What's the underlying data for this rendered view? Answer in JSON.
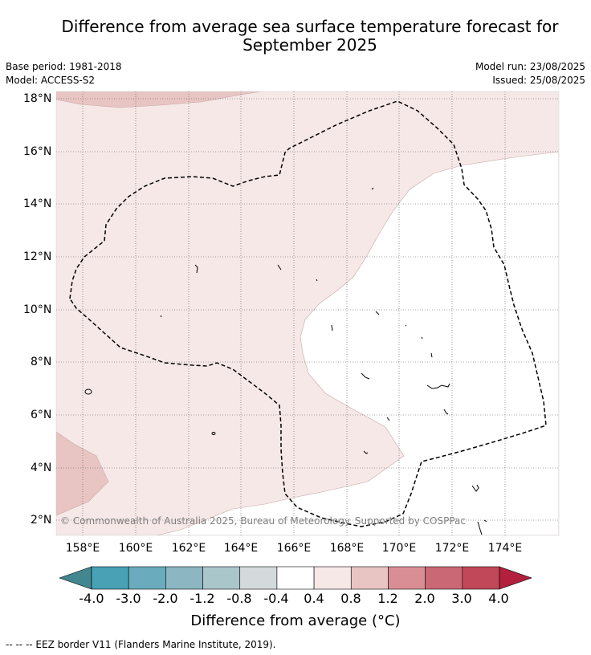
{
  "header": {
    "title_line1": "Difference from average sea surface temperature forecast for",
    "title_line2": "September 2025",
    "base_period": "Base period: 1981-2018",
    "model": "Model: ACCESS-S2",
    "model_run": "Model run: 23/08/2025",
    "issued": "Issued: 25/08/2025"
  },
  "map": {
    "lon_range": [
      157,
      176
    ],
    "lat_range": [
      1.4,
      18.2
    ],
    "lat_labels": [
      "18°N",
      "16°N",
      "14°N",
      "12°N",
      "10°N",
      "8°N",
      "6°N",
      "4°N",
      "2°N"
    ],
    "lon_labels": [
      "158°E",
      "160°E",
      "162°E",
      "164°E",
      "166°E",
      "168°E",
      "170°E",
      "172°E",
      "174°E"
    ],
    "copyright": "© Commonwealth of Australia 2025, Bureau of Meteorology. Supported by COSPPac",
    "colors": {
      "anomaly_0_4_to_0_8": "#f5e8e7",
      "anomaly_0_8_to_1_2": "#e8c5c2",
      "anomaly_neg0_4_to_0_4": "#ffffff"
    },
    "eez_style": "dashed"
  },
  "colorbar": {
    "ticks": [
      "-4.0",
      "-3.0",
      "-2.0",
      "-1.2",
      "-0.8",
      "-0.4",
      "0.4",
      "0.8",
      "1.2",
      "2.0",
      "3.0",
      "4.0"
    ],
    "colors": [
      "#428690",
      "#48a1b4",
      "#6aacbd",
      "#8bb6c2",
      "#a9c6cb",
      "#d4d9dc",
      "#ffffff",
      "#f5e8e7",
      "#e8c5c2",
      "#d98e96",
      "#cb6875",
      "#c04858",
      "#b2203d"
    ],
    "label": "Difference from average (°C)"
  },
  "footer": {
    "legend_text": "--  --  -- EEZ border V11 (Flanders Marine Institute, 2019)."
  }
}
